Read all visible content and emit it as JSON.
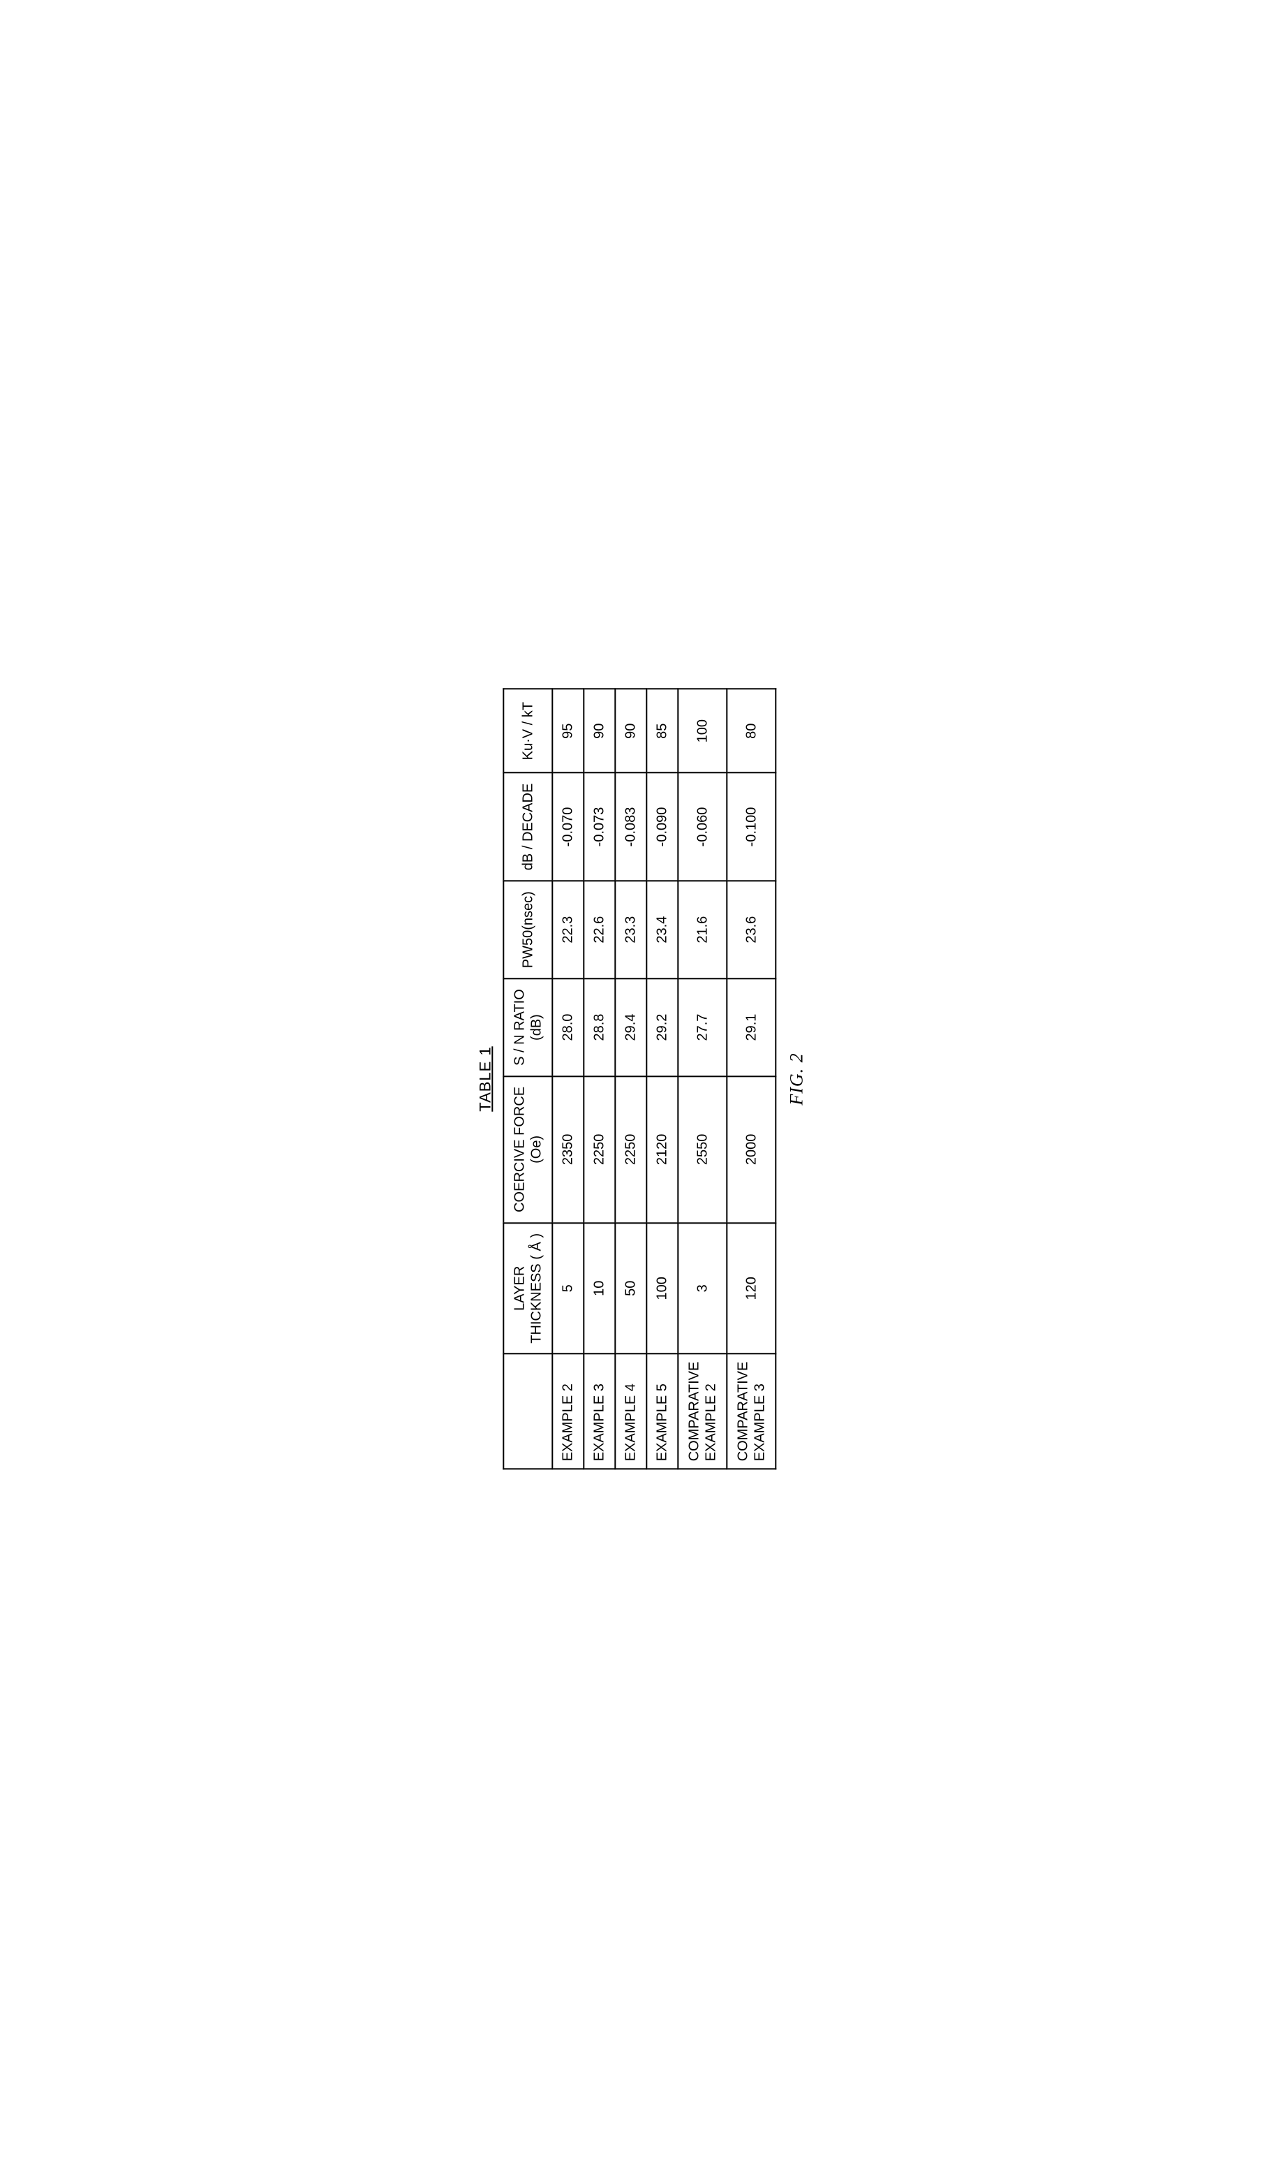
{
  "title": "TABLE 1",
  "figure_caption": "FIG. 2",
  "headers": {
    "blank": "",
    "thickness_line1": "LAYER",
    "thickness_line2": "THICKNESS ( Å )",
    "coercive_line1": "COERCIVE FORCE",
    "coercive_line2": "(Oe)",
    "sn_line1": "S / N RATIO",
    "sn_line2": "(dB)",
    "pw50": "PW50(nsec)",
    "db_decade": "dB / DECADE",
    "kuv": "Ku·V / kT"
  },
  "rows": [
    {
      "label": "EXAMPLE  2",
      "thickness": "5",
      "coercive": "2350",
      "sn": "28.0",
      "pw50": "22.3",
      "db": "-0.070",
      "kuv": "95"
    },
    {
      "label": "EXAMPLE  3",
      "thickness": "10",
      "coercive": "2250",
      "sn": "28.8",
      "pw50": "22.6",
      "db": "-0.073",
      "kuv": "90"
    },
    {
      "label": "EXAMPLE  4",
      "thickness": "50",
      "coercive": "2250",
      "sn": "29.4",
      "pw50": "23.3",
      "db": "-0.083",
      "kuv": "90"
    },
    {
      "label": "EXAMPLE  5",
      "thickness": "100",
      "coercive": "2120",
      "sn": "29.2",
      "pw50": "23.4",
      "db": "-0.090",
      "kuv": "85"
    },
    {
      "label_line1": "COMPARATIVE",
      "label_line2": "EXAMPLE  2",
      "thickness": "3",
      "coercive": "2550",
      "sn": "27.7",
      "pw50": "21.6",
      "db": "-0.060",
      "kuv": "100"
    },
    {
      "label_line1": "COMPARATIVE",
      "label_line2": "EXAMPLE  3",
      "thickness": "120",
      "coercive": "2000",
      "sn": "29.1",
      "pw50": "23.6",
      "db": "-0.100",
      "kuv": "80"
    }
  ],
  "style": {
    "border_color": "#000000",
    "background_color": "#ffffff",
    "font_size_cell": 20,
    "font_size_title": 22,
    "font_size_caption": 26
  }
}
